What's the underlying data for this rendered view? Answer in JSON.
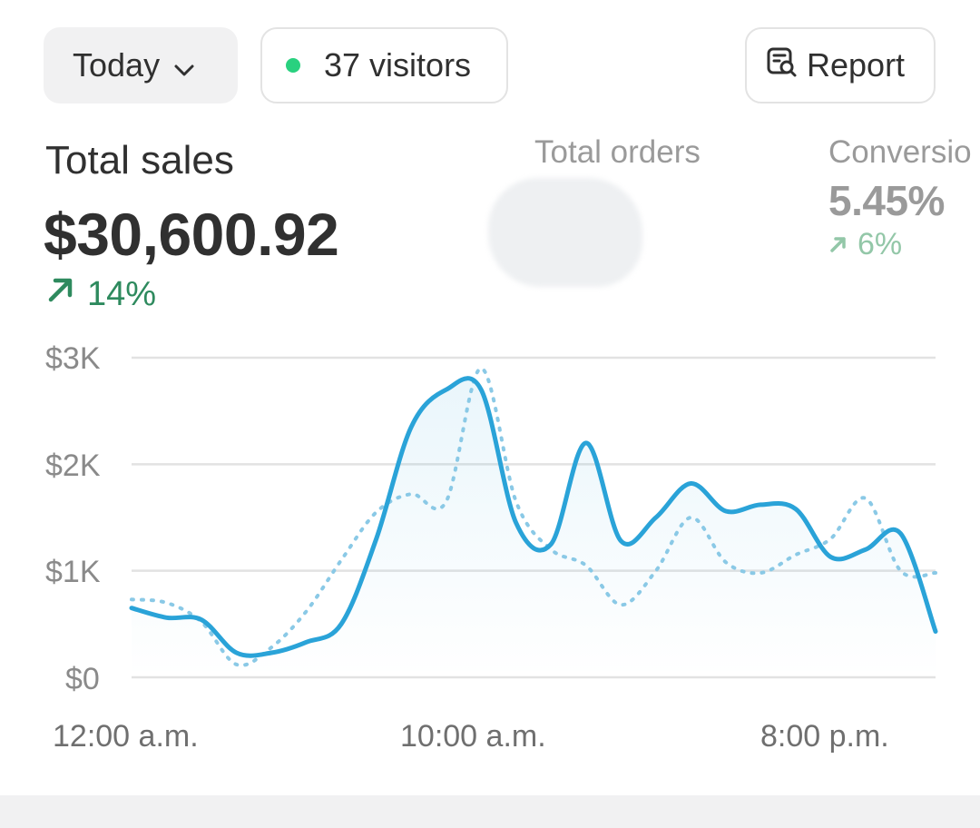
{
  "toolbar": {
    "date_range": "Today",
    "visitors_label": "37 visitors",
    "report_label": "Report"
  },
  "metrics": {
    "total_sales": {
      "title": "Total sales",
      "value": "$30,600.92",
      "change": "14%"
    },
    "total_orders": {
      "title": "Total orders"
    },
    "conversion": {
      "title": "Conversio",
      "value": "5.45%",
      "change": "6%"
    }
  },
  "colors": {
    "primary_line": "#2aa3d8",
    "comparison_line": "#8ac9e6",
    "positive": "#2e8a5e",
    "live_dot": "#29d17f"
  },
  "chart_data": {
    "type": "line",
    "ylim": [
      0,
      3000
    ],
    "y_ticks": [
      "$0",
      "$1K",
      "$2K",
      "$3K"
    ],
    "x_tick_labels": [
      "12:00 a.m.",
      "10:00 a.m.",
      "8:00 p.m."
    ],
    "grid": true,
    "series": [
      {
        "style": "solid",
        "values": [
          650,
          560,
          540,
          230,
          230,
          330,
          500,
          1300,
          2350,
          2700,
          2700,
          1450,
          1250,
          2200,
          1280,
          1500,
          1820,
          1560,
          1620,
          1580,
          1130,
          1200,
          1350,
          430
        ]
      },
      {
        "style": "dotted",
        "values": [
          730,
          700,
          520,
          120,
          280,
          620,
          1100,
          1550,
          1720,
          1650,
          2900,
          1650,
          1200,
          1050,
          680,
          1000,
          1500,
          1080,
          980,
          1150,
          1300,
          1680,
          1000,
          980
        ]
      }
    ]
  }
}
